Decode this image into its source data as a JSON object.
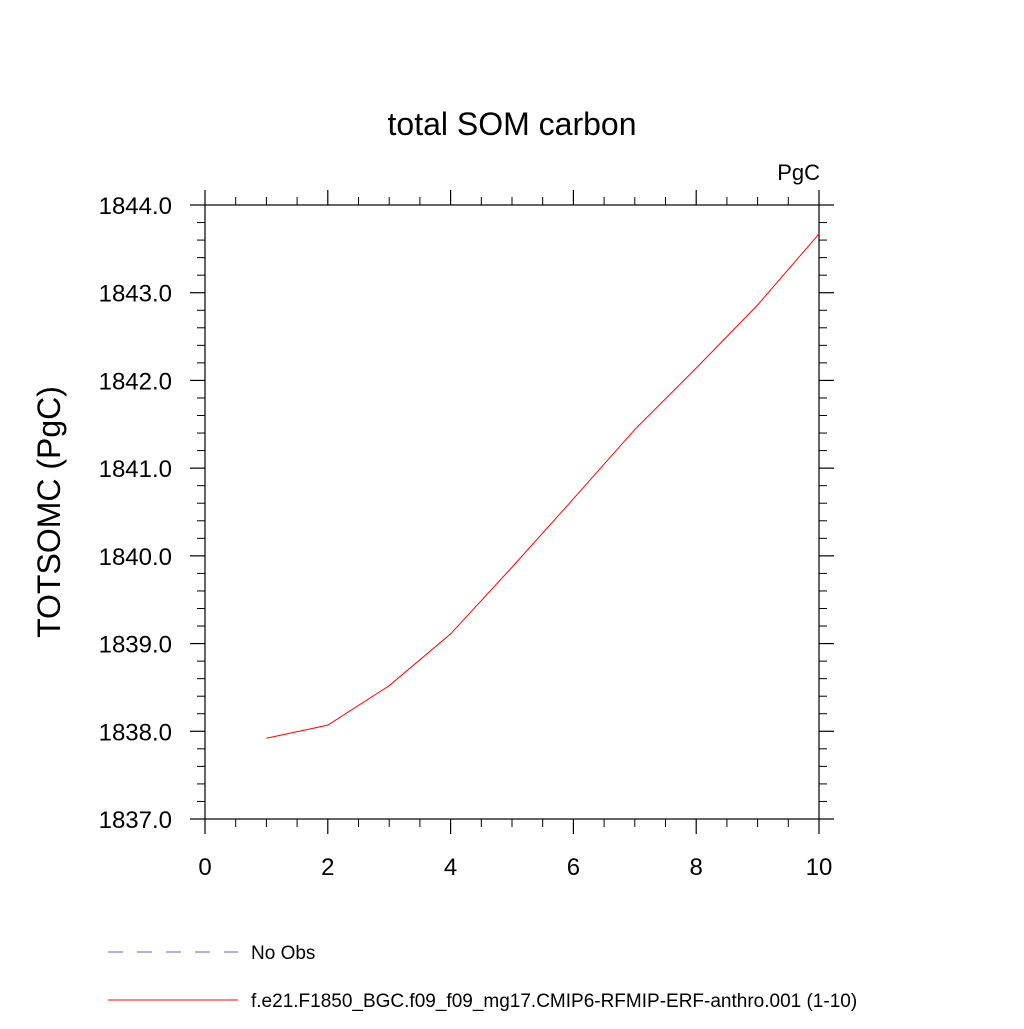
{
  "chart_data": {
    "type": "line",
    "title": "total SOM carbon",
    "units_label": "PgC",
    "xlabel": "",
    "ylabel": "TOTSOMC  (PgC)",
    "xlim": [
      0,
      10
    ],
    "ylim": [
      1837.0,
      1844.0
    ],
    "x_ticks": [
      0,
      2,
      4,
      6,
      8,
      10
    ],
    "x_tick_labels": [
      "0",
      "2",
      "4",
      "6",
      "8",
      "10"
    ],
    "y_ticks": [
      1837.0,
      1838.0,
      1839.0,
      1840.0,
      1841.0,
      1842.0,
      1843.0,
      1844.0
    ],
    "y_tick_labels": [
      "1837.0",
      "1838.0",
      "1839.0",
      "1840.0",
      "1841.0",
      "1842.0",
      "1843.0",
      "1844.0"
    ],
    "grid": false,
    "legend_position": "bottom",
    "series": [
      {
        "name": "f.e21.F1850_BGC.f09_f09_mg17.CMIP6-RFMIP-ERF-anthro.001 (1-10)",
        "color": "#ff0000",
        "style": "solid",
        "x": [
          1,
          2,
          3,
          4,
          5,
          6,
          7,
          8,
          9,
          10
        ],
        "values": [
          1837.92,
          1838.07,
          1838.52,
          1839.11,
          1839.87,
          1840.65,
          1841.44,
          1842.14,
          1842.86,
          1843.67
        ]
      }
    ],
    "legend": [
      {
        "label": "No Obs",
        "color": "#6a5acd",
        "style": "dashed"
      },
      {
        "label": "f.e21.F1850_BGC.f09_f09_mg17.CMIP6-RFMIP-ERF-anthro.001 (1-10)",
        "color": "#ff0000",
        "style": "solid"
      }
    ]
  }
}
